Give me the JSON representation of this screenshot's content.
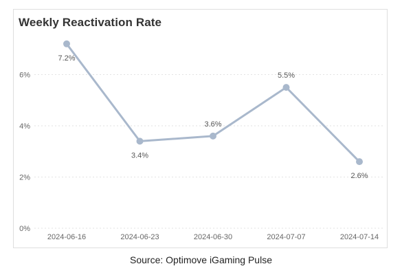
{
  "chart_data": {
    "type": "line",
    "title": "Weekly Reactivation Rate",
    "xlabel": "",
    "ylabel": "",
    "categories": [
      "2024-06-16",
      "2024-06-23",
      "2024-06-30",
      "2024-07-07",
      "2024-07-14"
    ],
    "series": [
      {
        "values": [
          7.2,
          3.4,
          3.6,
          5.5,
          2.6
        ],
        "labels": [
          "7.2%",
          "3.4%",
          "3.6%",
          "5.5%",
          "2.6%"
        ]
      }
    ],
    "ylim": [
      0,
      8
    ],
    "yticks": [
      0,
      2,
      4,
      6
    ],
    "ytick_labels": [
      "0%",
      "2%",
      "4%",
      "6%"
    ],
    "grid": true,
    "legend": "none",
    "line_color": "#a9b8cc",
    "label_color": "#555555"
  },
  "footer": {
    "source": "Source: Optimove iGaming Pulse"
  }
}
